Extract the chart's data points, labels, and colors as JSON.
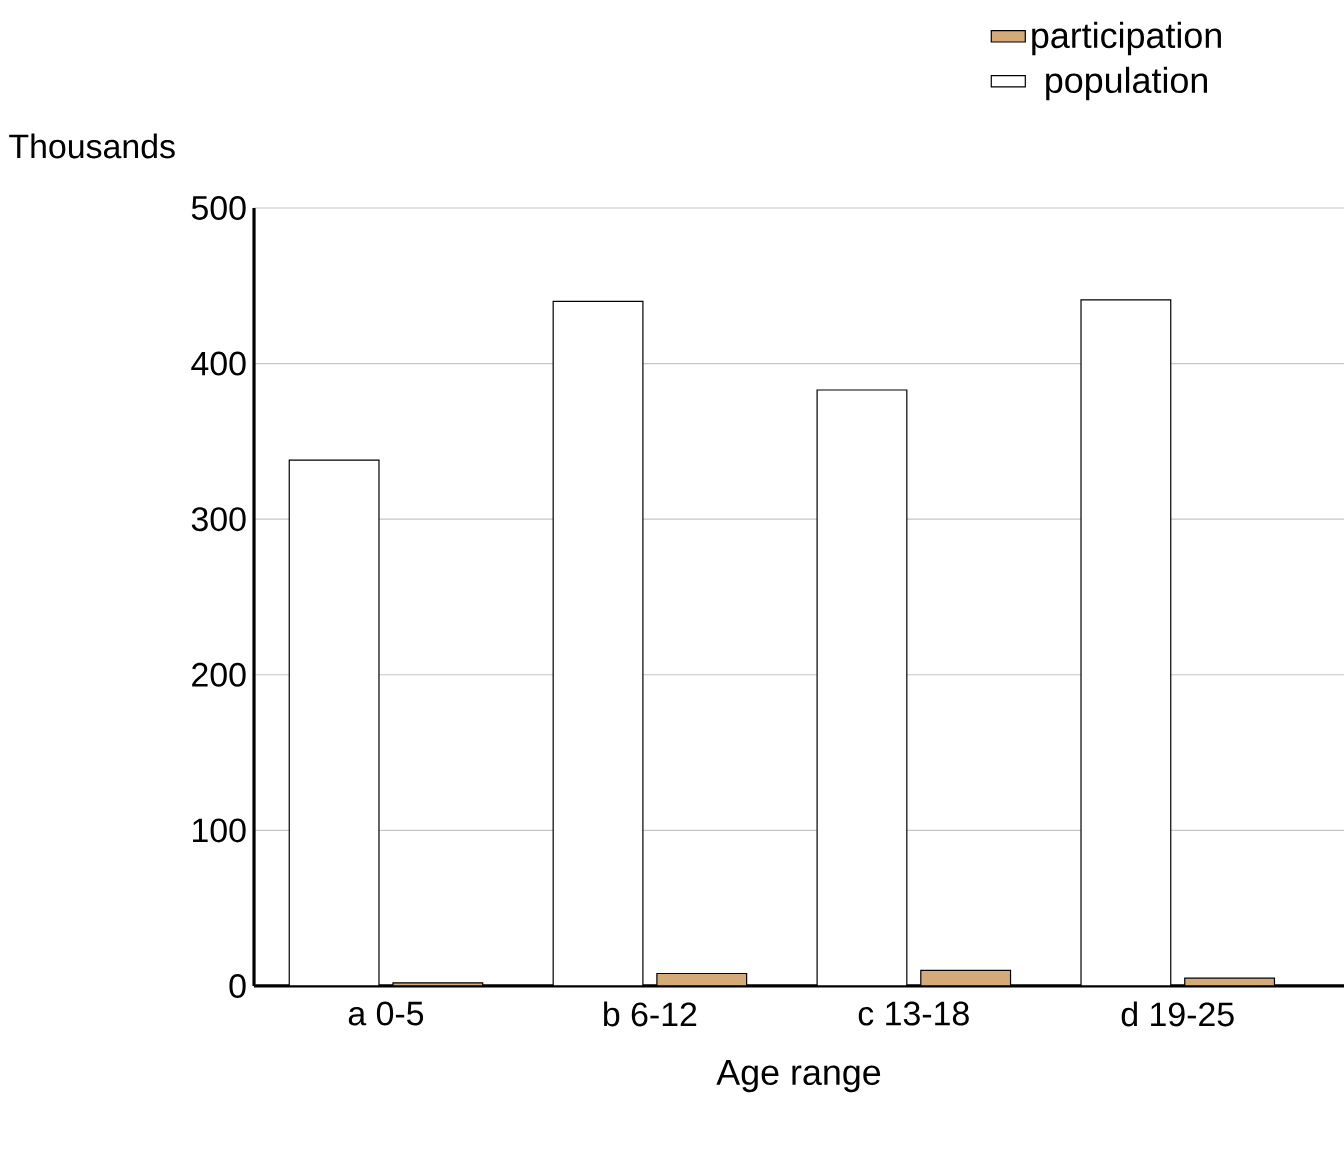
{
  "chart_data": {
    "type": "bar",
    "ylabel": "Thousands",
    "xlabel": "Age range",
    "categories": [
      "a 0-5",
      "b 6-12",
      "c 13-18",
      "d 19-25"
    ],
    "series": [
      {
        "name": "population",
        "color": "#ffffff",
        "values": [
          338,
          440,
          383,
          441
        ]
      },
      {
        "name": "participation",
        "color": "#d4aa78",
        "values": [
          2,
          8,
          10,
          5
        ]
      }
    ],
    "ylim": [
      0,
      500
    ],
    "yticks": [
      0,
      100,
      200,
      300,
      400,
      500
    ],
    "grid": "y",
    "legend": "top right"
  }
}
